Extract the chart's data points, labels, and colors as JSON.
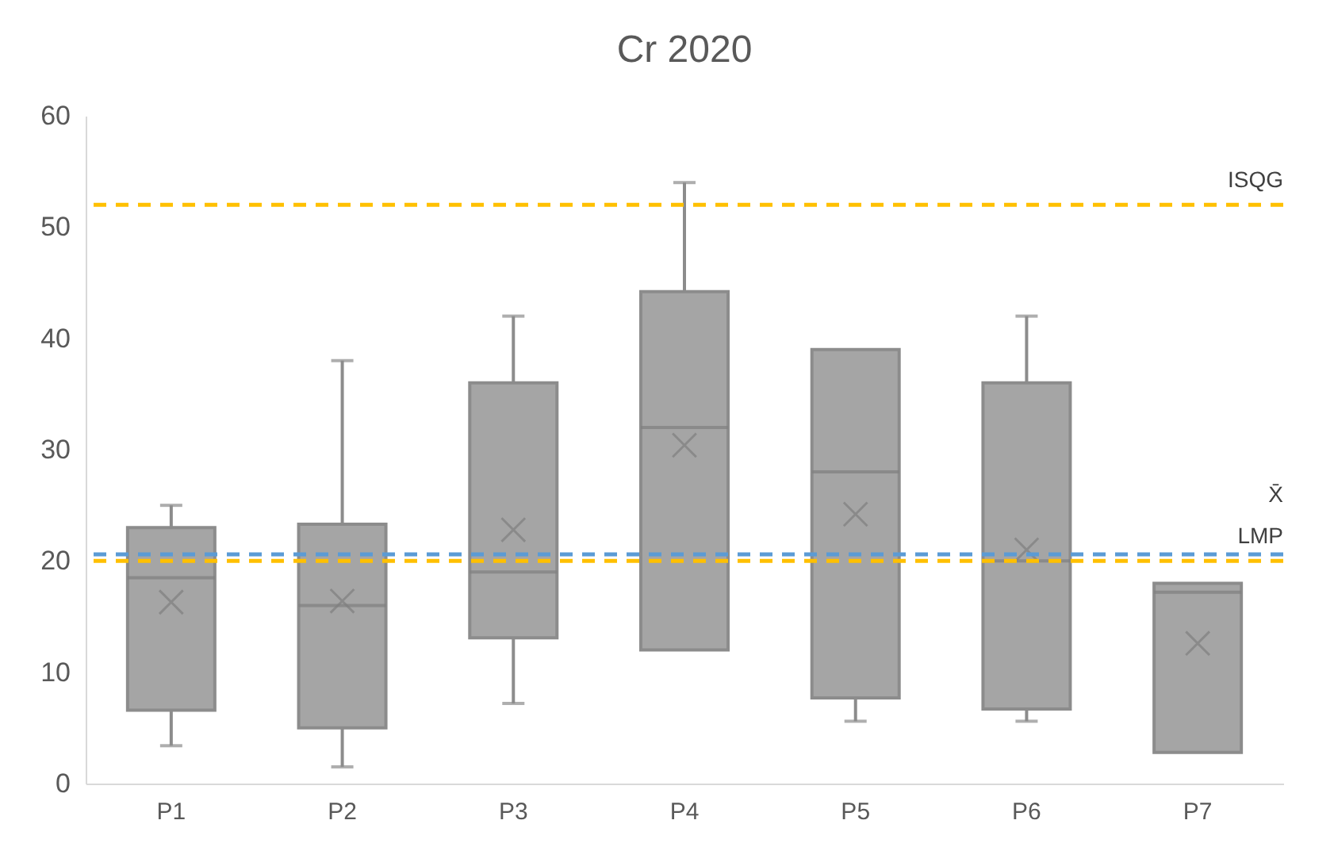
{
  "chart_data": {
    "type": "box",
    "title": "Cr 2020",
    "categories": [
      "P1",
      "P2",
      "P3",
      "P4",
      "P5",
      "P6",
      "P7"
    ],
    "boxes": [
      {
        "low": 3.4,
        "q1": 6.6,
        "median": 18.5,
        "q3": 23,
        "high": 25,
        "mean": 16.3
      },
      {
        "low": 1.5,
        "q1": 5,
        "median": 16,
        "q3": 23.3,
        "high": 38,
        "mean": 16.4
      },
      {
        "low": 7.2,
        "q1": 13.1,
        "median": 19,
        "q3": 36,
        "high": 42,
        "mean": 22.8
      },
      {
        "low": 12,
        "q1": 12,
        "median": 32,
        "q3": 44.2,
        "high": 54,
        "mean": 30.4
      },
      {
        "low": 5.6,
        "q1": 7.7,
        "median": 28,
        "q3": 39,
        "high": 39,
        "mean": 24.2
      },
      {
        "low": 5.6,
        "q1": 6.7,
        "median": 20,
        "q3": 36,
        "high": 42,
        "mean": 21
      },
      {
        "low": 2.8,
        "q1": 2.8,
        "median": 17.2,
        "q3": 18,
        "high": 18,
        "mean": 12.6
      }
    ],
    "color": "#a5a5a5",
    "ylim": [
      0,
      60
    ],
    "yticks": [
      0,
      10,
      20,
      30,
      40,
      50,
      60
    ],
    "grid": false,
    "ref_lines": [
      {
        "axis": "y",
        "value": 52,
        "label": "ISQG",
        "color": "#ffc000",
        "line_style": "dashed"
      },
      {
        "axis": "y",
        "value": 20.6,
        "label": "X̄",
        "color": "#5b9bd5",
        "line_style": "dashed"
      },
      {
        "axis": "y",
        "value": 20,
        "label": "LMP",
        "color": "#ffc000",
        "line_style": "dashed"
      }
    ]
  }
}
